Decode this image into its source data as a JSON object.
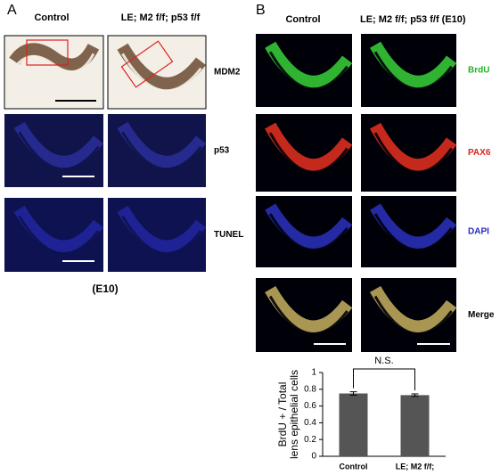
{
  "panel_a": {
    "label": "A",
    "columns": [
      "Control",
      "LE; M2 f/f; p53 f/f"
    ],
    "rows": [
      "MDM2",
      "p53",
      "TUNEL"
    ],
    "footer": "(E10)"
  },
  "panel_b": {
    "label": "B",
    "columns": [
      "Control",
      "LE; M2 f/f; p53 f/f  (E10)"
    ],
    "rows": [
      "BrdU",
      "PAX6",
      "DAPI",
      "Merge"
    ],
    "row_colors": [
      "#22b422",
      "#e02020",
      "#2828c8",
      "#000000"
    ]
  },
  "chart_data": {
    "type": "bar",
    "y_label": [
      "BrdU + / Total",
      "lens epithelial cells"
    ],
    "categories": [
      "Control",
      "LE; M2 f/f;"
    ],
    "values": [
      0.75,
      0.73
    ],
    "errors": [
      0.02,
      0.015
    ],
    "color": "#555555",
    "ylim": [
      0,
      1
    ],
    "yticks": [
      0,
      0.2,
      0.4,
      0.6,
      0.8,
      1
    ],
    "annotation": "N.S."
  }
}
